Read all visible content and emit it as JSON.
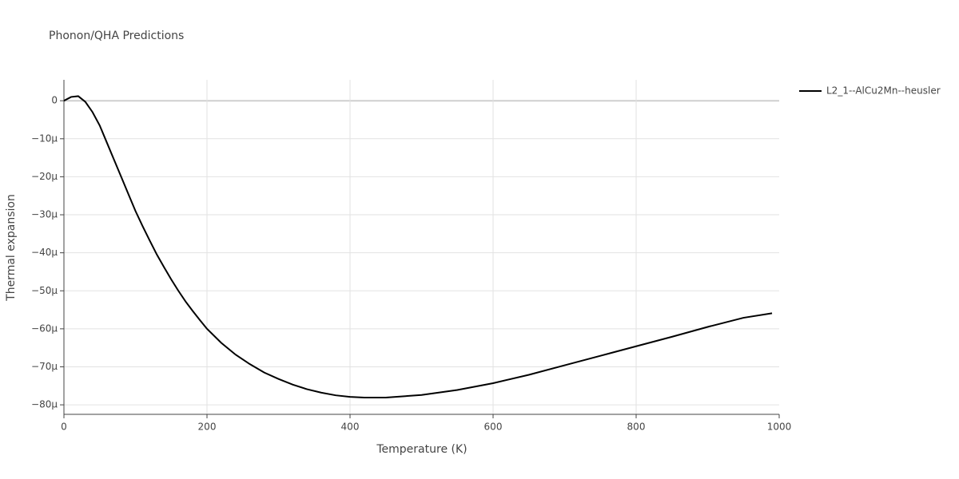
{
  "chart_data": {
    "type": "line",
    "title": "Phonon/QHA Predictions",
    "x_label": "Temperature (K)",
    "y_label": "Thermal expansion",
    "x": [
      0,
      10,
      20,
      30,
      40,
      50,
      60,
      70,
      80,
      90,
      100,
      110,
      120,
      130,
      140,
      150,
      160,
      170,
      180,
      190,
      200,
      220,
      240,
      260,
      280,
      300,
      320,
      340,
      360,
      380,
      400,
      420,
      450,
      500,
      550,
      600,
      650,
      700,
      750,
      800,
      850,
      900,
      950,
      990
    ],
    "series": [
      {
        "name": "L2_1--AlCu2Mn--heusler",
        "color": "#000000",
        "values": [
          0,
          1e-06,
          1.2e-06,
          -3e-07,
          -3e-06,
          -6.5e-06,
          -1.1e-05,
          -1.55e-05,
          -2e-05,
          -2.45e-05,
          -2.9e-05,
          -3.3e-05,
          -3.68e-05,
          -4.05e-05,
          -4.38e-05,
          -4.7e-05,
          -5e-05,
          -5.28e-05,
          -5.53e-05,
          -5.77e-05,
          -6e-05,
          -6.37e-05,
          -6.68e-05,
          -6.93e-05,
          -7.15e-05,
          -7.32e-05,
          -7.47e-05,
          -7.59e-05,
          -7.68e-05,
          -7.75e-05,
          -7.79e-05,
          -7.81e-05,
          -7.81e-05,
          -7.74e-05,
          -7.61e-05,
          -7.43e-05,
          -7.21e-05,
          -6.96e-05,
          -6.71e-05,
          -6.46e-05,
          -6.21e-05,
          -5.95e-05,
          -5.71e-05,
          -5.59e-05
        ]
      }
    ],
    "xlim": [
      0,
      1000
    ],
    "xticks": [
      0,
      200,
      400,
      600,
      800,
      1000
    ],
    "ylim": [
      -8.25e-05,
      5.5e-06
    ],
    "yticks": [
      0,
      {
        "value": -1e-05,
        "label": "−10μ"
      },
      {
        "value": -2e-05,
        "label": "−20μ"
      },
      {
        "value": -3e-05,
        "label": "−30μ"
      },
      {
        "value": -4e-05,
        "label": "−40μ"
      },
      {
        "value": -5e-05,
        "label": "−50μ"
      },
      {
        "value": -6e-05,
        "label": "−60μ"
      },
      {
        "value": -7e-05,
        "label": "−70μ"
      },
      {
        "value": -8e-05,
        "label": "−80μ"
      }
    ],
    "grid": true,
    "legend": "right"
  }
}
